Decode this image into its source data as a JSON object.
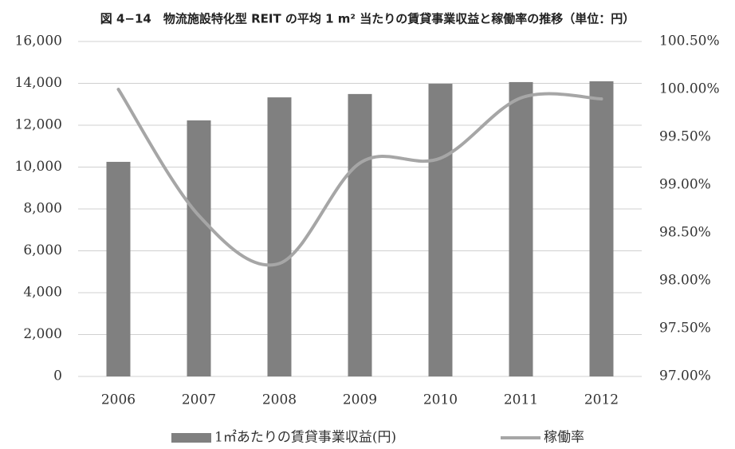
{
  "chart_data": {
    "type": "bar",
    "title": "図 4−14　物流施設特化型 REIT の平均 1 m² 当たりの賃貸事業収益と稼働率の推移（単位：円）",
    "categories": [
      "2006",
      "2007",
      "2008",
      "2009",
      "2010",
      "2011",
      "2012"
    ],
    "series": [
      {
        "name": "1㎡あたりの賃貸事業収益(円)",
        "type": "bar",
        "color": "#808080",
        "values": [
          10250,
          12230,
          13330,
          13490,
          13980,
          14060,
          14100
        ]
      },
      {
        "name": "稼働率",
        "type": "line",
        "axis": "y2",
        "color": "#a6a6a6",
        "values": [
          100.0,
          98.68,
          98.18,
          99.23,
          99.28,
          99.91,
          99.9
        ]
      }
    ],
    "ylim": [
      0,
      16000
    ],
    "yticks": [
      0,
      {
        "value": 2000,
        "label": "2,000"
      },
      {
        "value": 4000,
        "label": "4,000"
      },
      {
        "value": 6000,
        "label": "6,000"
      },
      {
        "value": 8000,
        "label": "8,000"
      },
      {
        "value": 10000,
        "label": "10,000"
      },
      {
        "value": 12000,
        "label": "12,000"
      },
      {
        "value": 14000,
        "label": "14,000"
      },
      {
        "value": 16000,
        "label": "16,000"
      }
    ],
    "y2lim": [
      97,
      100.5
    ],
    "y2ticks": [
      {
        "value": 97,
        "label": "97.00%"
      },
      {
        "value": 97.5,
        "label": "97.50%"
      },
      {
        "value": 98,
        "label": "98.00%"
      },
      {
        "value": 98.5,
        "label": "98.50%"
      },
      {
        "value": 99,
        "label": "99.00%"
      },
      {
        "value": 99.5,
        "label": "99.50%"
      },
      {
        "value": 100,
        "label": "100.00%"
      },
      {
        "value": 100.5,
        "label": "100.50%"
      }
    ],
    "grid": true,
    "legend": "bottom"
  }
}
